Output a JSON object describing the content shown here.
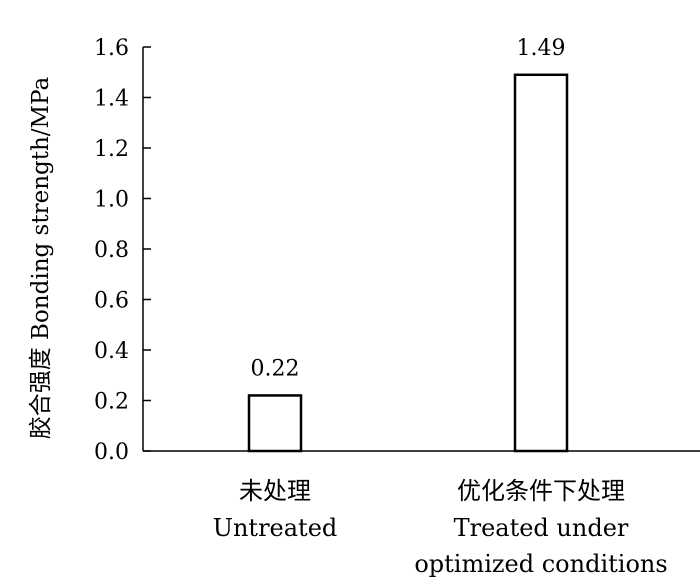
{
  "chart_data": {
    "type": "bar",
    "title": "",
    "ylabel": "胶合强度 Bonding strength/MPa",
    "xlabel": "",
    "ylim": [
      0,
      1.6
    ],
    "yticks": [
      "0.0",
      "0.2",
      "0.4",
      "0.6",
      "0.8",
      "1.0",
      "1.2",
      "1.4",
      "1.6"
    ],
    "categories": [
      {
        "zh": "未处理",
        "en": [
          "Untreated"
        ]
      },
      {
        "zh": "优化条件下处理",
        "en": [
          "Treated under",
          "optimized conditions"
        ]
      }
    ],
    "values": [
      0.22,
      1.49
    ],
    "data_labels": [
      "0.22",
      "1.49"
    ],
    "grid": false,
    "legend": "none",
    "bar_fill": "#ffffff",
    "bar_stroke": "#000000"
  }
}
